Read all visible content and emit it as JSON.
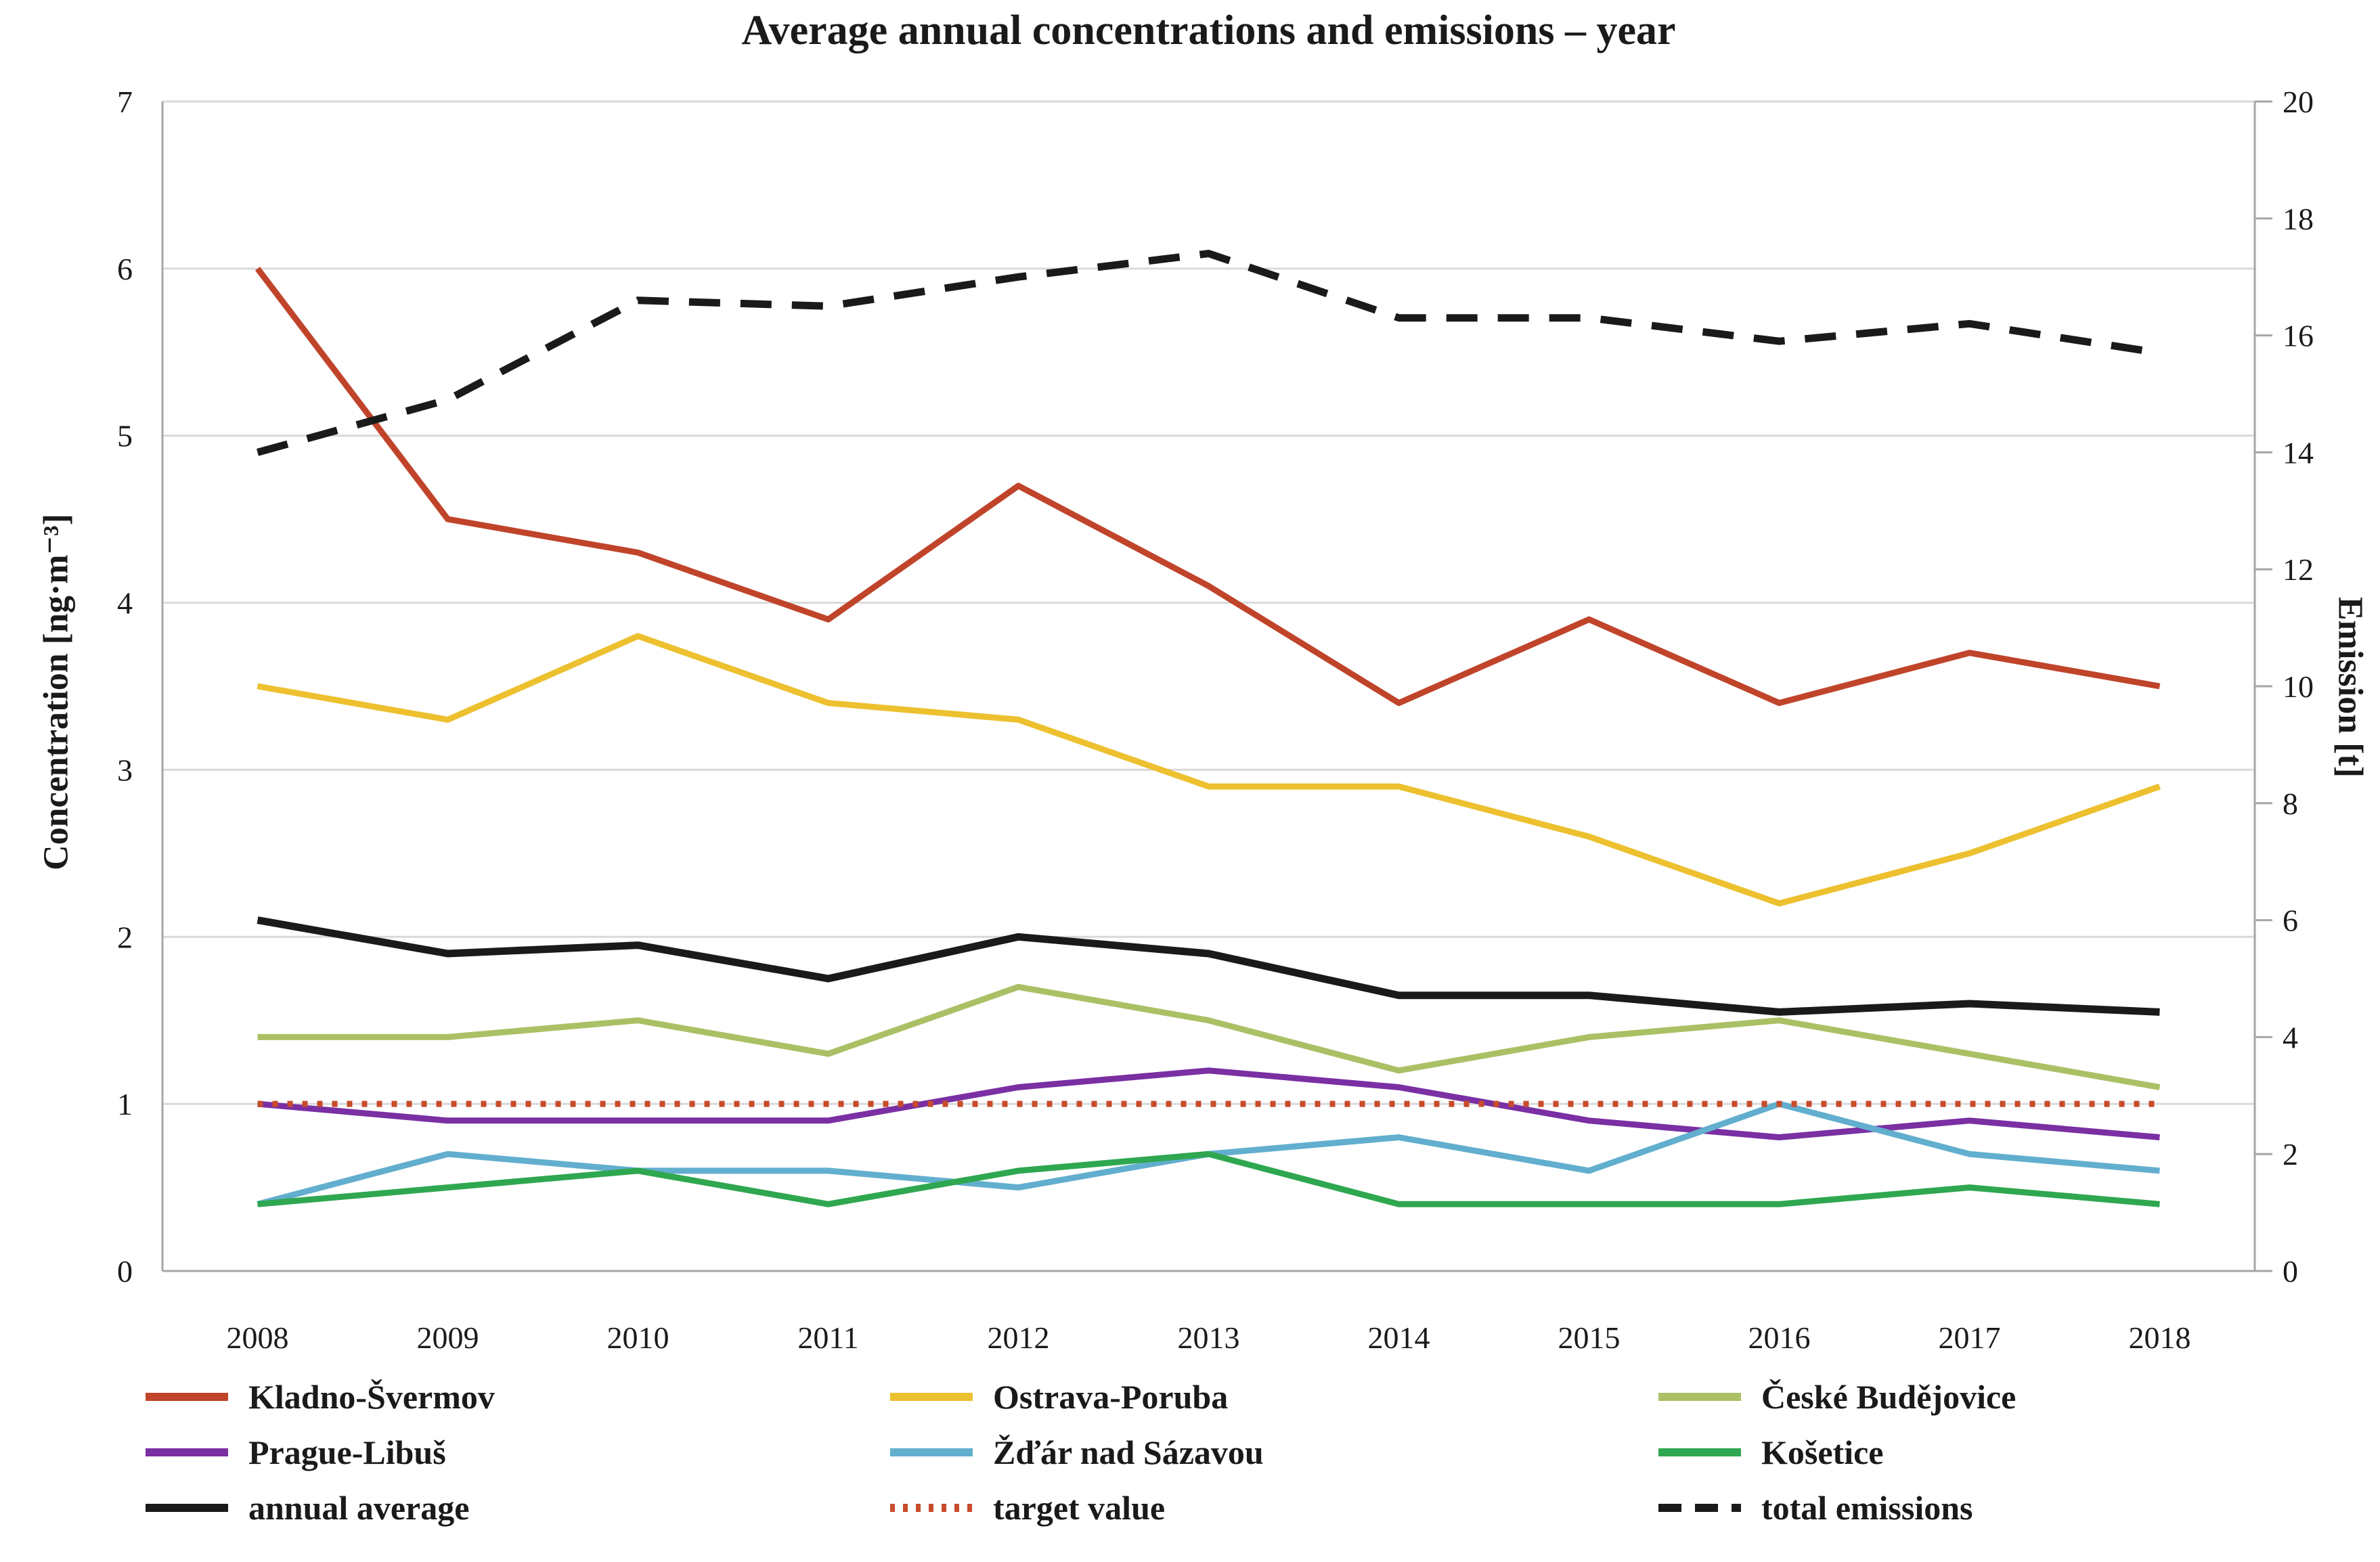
{
  "chart_data": {
    "type": "line",
    "title": "Average annual concentrations and emissions – year",
    "left_axis_label": "Concentration [ng·m⁻³]",
    "right_axis_label": "Emission [t]",
    "left_ylim": [
      0,
      7
    ],
    "right_ylim": [
      0,
      20
    ],
    "left_ticks": [
      0,
      1,
      2,
      3,
      4,
      5,
      6,
      7
    ],
    "right_ticks": [
      0,
      2,
      4,
      6,
      8,
      10,
      12,
      14,
      16,
      18,
      20
    ],
    "grid": "horizontal",
    "legend_position": "bottom",
    "categories": [
      "2008",
      "2009",
      "2010",
      "2011",
      "2012",
      "2013",
      "2014",
      "2015",
      "2016",
      "2017",
      "2018"
    ],
    "series": [
      {
        "name": "Kladno-Švermov",
        "color": "#C0442A",
        "style": "solid",
        "axis": "left",
        "values": [
          6.0,
          4.5,
          4.3,
          3.9,
          4.7,
          4.1,
          3.4,
          3.9,
          3.4,
          3.7,
          3.5
        ]
      },
      {
        "name": "Ostrava-Poruba",
        "color": "#EDC02F",
        "style": "solid",
        "axis": "left",
        "values": [
          3.5,
          3.3,
          3.8,
          3.4,
          3.3,
          2.9,
          2.9,
          2.6,
          2.2,
          2.5,
          2.9
        ]
      },
      {
        "name": "České Budějovice",
        "color": "#ABC065",
        "style": "solid",
        "axis": "left",
        "values": [
          1.4,
          1.4,
          1.5,
          1.3,
          1.7,
          1.5,
          1.2,
          1.4,
          1.5,
          1.3,
          1.1
        ]
      },
      {
        "name": "Prague-Libuš",
        "color": "#7A2FA3",
        "style": "solid",
        "axis": "left",
        "values": [
          1.0,
          0.9,
          0.9,
          0.9,
          1.1,
          1.2,
          1.1,
          0.9,
          0.8,
          0.9,
          0.8
        ]
      },
      {
        "name": "Žďár nad Sázavou",
        "color": "#62AECE",
        "style": "solid",
        "axis": "left",
        "values": [
          0.4,
          0.7,
          0.6,
          0.6,
          0.5,
          0.7,
          0.8,
          0.6,
          1.0,
          0.7,
          0.6
        ]
      },
      {
        "name": "Košetice",
        "color": "#2FA750",
        "style": "solid",
        "axis": "left",
        "values": [
          0.4,
          0.5,
          0.6,
          0.4,
          0.6,
          0.7,
          0.4,
          0.4,
          0.4,
          0.5,
          0.4
        ]
      },
      {
        "name": "annual average",
        "color": "#1A1A1A",
        "style": "solid",
        "axis": "left",
        "values": [
          2.1,
          1.9,
          1.95,
          1.75,
          2.0,
          1.9,
          1.65,
          1.65,
          1.55,
          1.6,
          1.55
        ]
      },
      {
        "name": "target value",
        "color": "#C84B2B",
        "style": "dotted",
        "axis": "left",
        "values": [
          1.0,
          1.0,
          1.0,
          1.0,
          1.0,
          1.0,
          1.0,
          1.0,
          1.0,
          1.0,
          1.0
        ]
      },
      {
        "name": "total emissions",
        "color": "#1A1A1A",
        "style": "dashed",
        "axis": "right",
        "values": [
          14.0,
          14.9,
          16.6,
          16.5,
          17.0,
          17.4,
          16.3,
          16.3,
          15.9,
          16.2,
          15.7
        ]
      }
    ],
    "legend_columns": [
      [
        "Kladno-Švermov",
        "Prague-Libuš",
        "annual average"
      ],
      [
        "Ostrava-Poruba",
        "Žďár nad Sázavou",
        "target value"
      ],
      [
        "České Budějovice",
        "Košetice",
        "total emissions"
      ]
    ]
  }
}
